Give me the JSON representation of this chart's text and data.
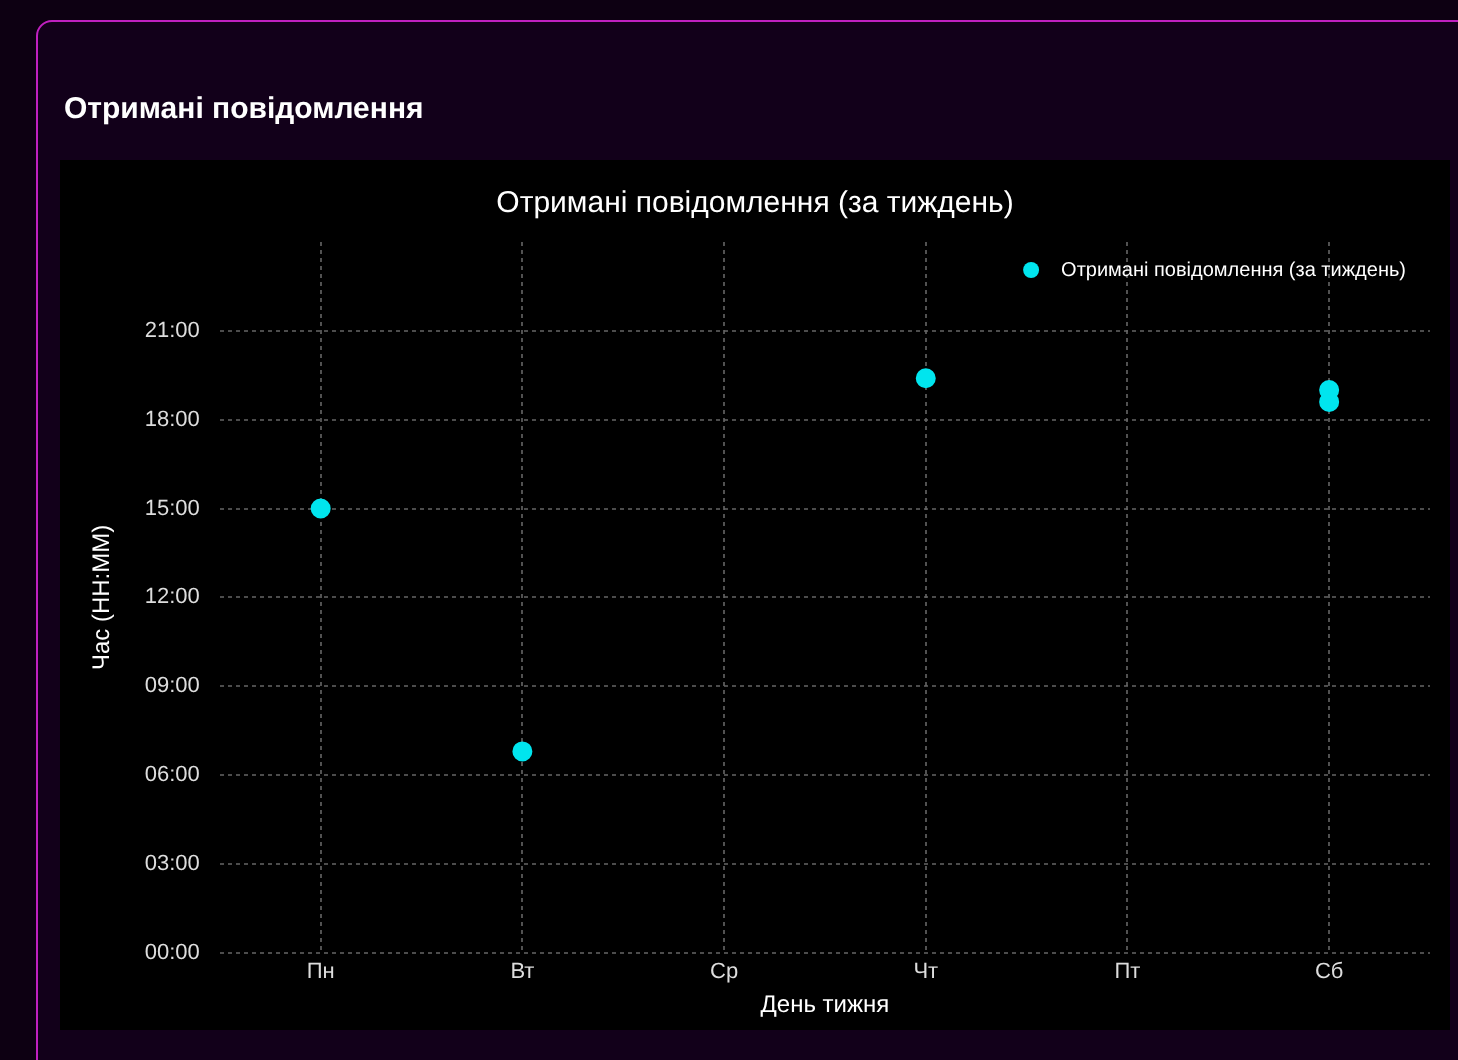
{
  "chart_data": {
    "type": "scatter",
    "title": "Отримані повідомлення",
    "subtitle": "Отримані повідомлення (за тиждень)",
    "xlabel": "День тижня",
    "ylabel": "Час (HH:MM)",
    "categories": [
      "Пн",
      "Вт",
      "Ср",
      "Чт",
      "Пт",
      "Сб"
    ],
    "series": [
      {
        "name": "Отримані повідомлення (за тиждень)",
        "color": "#00e5ee",
        "x": [
          "Пн",
          "Вт",
          "Чт",
          "Сб",
          "Сб"
        ],
        "values": [
          15.0,
          6.8,
          19.4,
          19.0,
          18.6
        ]
      }
    ],
    "ylim": [
      0,
      24
    ],
    "yticks": [
      {
        "value": 0,
        "label": "00:00"
      },
      {
        "value": 3,
        "label": "03:00"
      },
      {
        "value": 6,
        "label": "06:00"
      },
      {
        "value": 9,
        "label": "09:00"
      },
      {
        "value": 12,
        "label": "12:00"
      },
      {
        "value": 15,
        "label": "15:00"
      },
      {
        "value": 18,
        "label": "18:00"
      },
      {
        "value": 21,
        "label": "21:00"
      }
    ],
    "grid": true,
    "legend": "top right",
    "marker": "circle"
  }
}
